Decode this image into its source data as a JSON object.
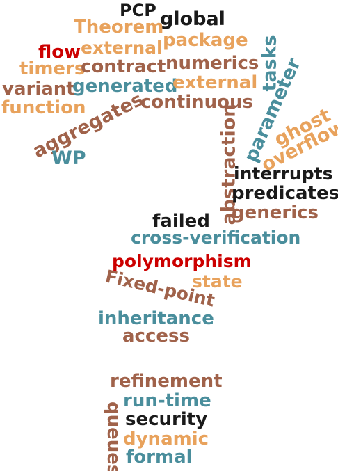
{
  "colors": {
    "brown": "#a0624a",
    "gold": "#e8a25c",
    "teal": "#4a8e9c",
    "black": "#1a1a1a",
    "red": "#cc0000"
  },
  "words": {
    "pcp": "PCP",
    "global": "global",
    "theorem": "Theorem",
    "package": "package",
    "flow": "flow",
    "external_top": "external",
    "tasks": "tasks",
    "timers": "timers",
    "contract": "contract",
    "numerics": "numerics",
    "variant": "variant",
    "generated": "generated",
    "external_mid": "external",
    "parameter": "parameter",
    "function": "function",
    "continuous": "continuous",
    "aggregates": "aggregates",
    "ghost": "ghost",
    "abstraction": "abstraction",
    "overflow": "overflow",
    "wp": "WP",
    "interrupts": "interrupts",
    "predicates": "predicates",
    "generics": "generics",
    "failed": "failed",
    "cross_verification": "cross-verification",
    "polymorphism": "polymorphism",
    "state": "state",
    "fixed_point": "Fixed-point",
    "inheritance": "inheritance",
    "access": "access",
    "refinement": "refinement",
    "run_time": "run-time",
    "security": "security",
    "queues": "queues",
    "dynamic": "dynamic",
    "formal": "formal"
  }
}
